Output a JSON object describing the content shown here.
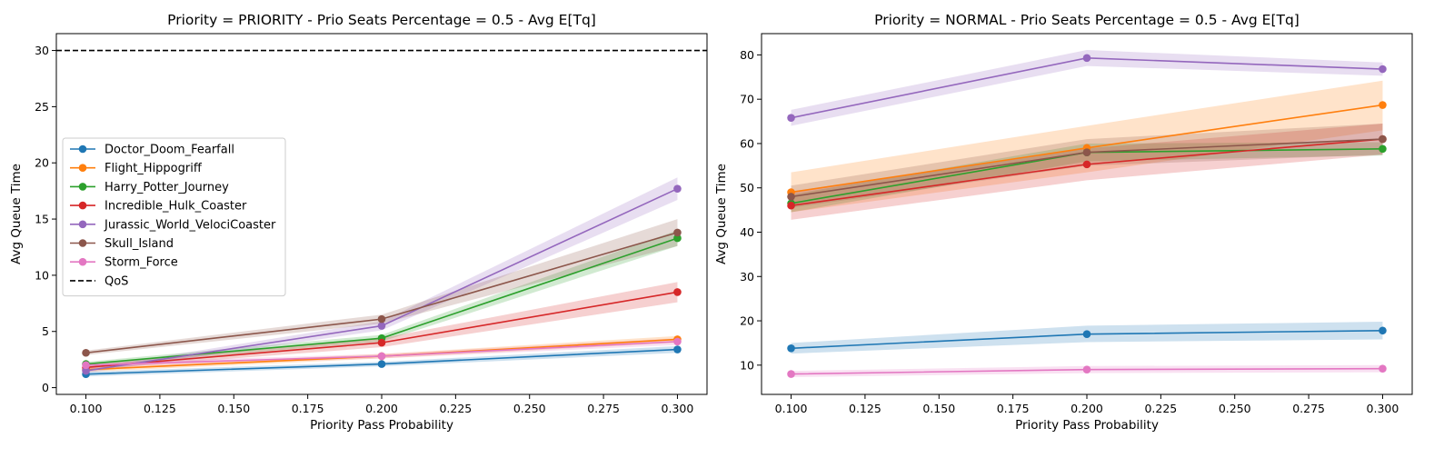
{
  "chart_data": [
    {
      "type": "line",
      "title": "Priority = PRIORITY - Prio Seats Percentage = 0.5 - Avg E[Tq]",
      "xlabel": "Priority Pass Probability",
      "ylabel": "Avg Queue Time",
      "xlim": [
        0.09,
        0.31
      ],
      "ylim": [
        -0.6,
        31.5
      ],
      "xticks": [
        0.1,
        0.125,
        0.15,
        0.175,
        0.2,
        0.225,
        0.25,
        0.275,
        0.3
      ],
      "xtick_labels": [
        "0.100",
        "0.125",
        "0.150",
        "0.175",
        "0.200",
        "0.225",
        "0.250",
        "0.275",
        "0.300"
      ],
      "yticks": [
        0,
        5,
        10,
        15,
        20,
        25,
        30
      ],
      "ytick_labels": [
        "0",
        "5",
        "10",
        "15",
        "20",
        "25",
        "30"
      ],
      "grid": false,
      "legend": "center-left",
      "x": [
        0.1,
        0.2,
        0.3
      ],
      "series": [
        {
          "name": "Doctor_Doom_Fearfall",
          "color": "#1f77b4",
          "values": [
            1.2,
            2.1,
            3.4
          ],
          "lower": [
            1.0,
            1.9,
            3.1
          ],
          "upper": [
            1.4,
            2.3,
            3.7
          ]
        },
        {
          "name": "Flight_Hippogriff",
          "color": "#ff7f0e",
          "values": [
            1.6,
            2.8,
            4.3
          ],
          "lower": [
            1.4,
            2.6,
            4.0
          ],
          "upper": [
            1.8,
            3.0,
            4.6
          ]
        },
        {
          "name": "Harry_Potter_Journey",
          "color": "#2ca02c",
          "values": [
            2.1,
            4.4,
            13.3
          ],
          "lower": [
            1.9,
            4.1,
            12.6
          ],
          "upper": [
            2.3,
            4.7,
            14.0
          ]
        },
        {
          "name": "Incredible_Hulk_Coaster",
          "color": "#d62728",
          "values": [
            1.8,
            4.0,
            8.5
          ],
          "lower": [
            1.6,
            3.6,
            7.6
          ],
          "upper": [
            2.0,
            4.4,
            9.4
          ]
        },
        {
          "name": "Jurassic_World_VelociCoaster",
          "color": "#9467bd",
          "values": [
            1.5,
            5.5,
            17.7
          ],
          "lower": [
            1.3,
            5.1,
            16.7
          ],
          "upper": [
            1.7,
            5.9,
            18.7
          ]
        },
        {
          "name": "Skull_Island",
          "color": "#8c564b",
          "values": [
            3.1,
            6.1,
            13.8
          ],
          "lower": [
            2.9,
            5.7,
            12.6
          ],
          "upper": [
            3.3,
            6.5,
            15.0
          ]
        },
        {
          "name": "Storm_Force",
          "color": "#e377c2",
          "values": [
            2.0,
            2.8,
            4.1
          ],
          "lower": [
            1.8,
            2.6,
            3.8
          ],
          "upper": [
            2.2,
            3.0,
            4.4
          ]
        }
      ],
      "reference_line": {
        "name": "QoS",
        "y": 30,
        "color": "#000000",
        "style": "dashed"
      }
    },
    {
      "type": "line",
      "title": "Priority = NORMAL - Prio Seats Percentage = 0.5 - Avg E[Tq]",
      "xlabel": "Priority Pass Probability",
      "ylabel": "Avg Queue Time",
      "xlim": [
        0.09,
        0.31
      ],
      "ylim": [
        3.4,
        84.8
      ],
      "xticks": [
        0.1,
        0.125,
        0.15,
        0.175,
        0.2,
        0.225,
        0.25,
        0.275,
        0.3
      ],
      "xtick_labels": [
        "0.100",
        "0.125",
        "0.150",
        "0.175",
        "0.200",
        "0.225",
        "0.250",
        "0.275",
        "0.300"
      ],
      "yticks": [
        10,
        20,
        30,
        40,
        50,
        60,
        70,
        80
      ],
      "ytick_labels": [
        "10",
        "20",
        "30",
        "40",
        "50",
        "60",
        "70",
        "80"
      ],
      "grid": false,
      "legend": "none",
      "x": [
        0.1,
        0.2,
        0.3
      ],
      "series": [
        {
          "color": "#1f77b4",
          "values": [
            13.8,
            17.0,
            17.8
          ],
          "lower": [
            12.6,
            15.2,
            15.8
          ],
          "upper": [
            15.0,
            18.9,
            19.8
          ]
        },
        {
          "color": "#ff7f0e",
          "values": [
            49.0,
            59.0,
            68.7
          ],
          "lower": [
            44.5,
            53.5,
            63.0
          ],
          "upper": [
            53.5,
            64.0,
            74.2
          ]
        },
        {
          "color": "#2ca02c",
          "values": [
            46.5,
            58.0,
            58.8
          ],
          "lower": [
            44.5,
            56.0,
            57.3
          ],
          "upper": [
            48.5,
            60.0,
            60.3
          ]
        },
        {
          "color": "#d62728",
          "values": [
            46.0,
            55.3,
            61.0
          ],
          "lower": [
            42.8,
            51.7,
            57.5
          ],
          "upper": [
            49.2,
            58.9,
            64.5
          ]
        },
        {
          "color": "#9467bd",
          "values": [
            65.8,
            79.3,
            76.8
          ],
          "lower": [
            64.0,
            77.5,
            75.3
          ],
          "upper": [
            67.6,
            81.1,
            78.3
          ]
        },
        {
          "color": "#8c564b",
          "values": [
            48.0,
            58.0,
            61.0
          ],
          "lower": [
            45.5,
            55.0,
            57.5
          ],
          "upper": [
            50.5,
            61.0,
            64.5
          ]
        },
        {
          "color": "#e377c2",
          "values": [
            8.0,
            9.0,
            9.2
          ],
          "lower": [
            7.3,
            8.2,
            8.4
          ],
          "upper": [
            8.7,
            9.8,
            10.0
          ]
        }
      ]
    }
  ]
}
